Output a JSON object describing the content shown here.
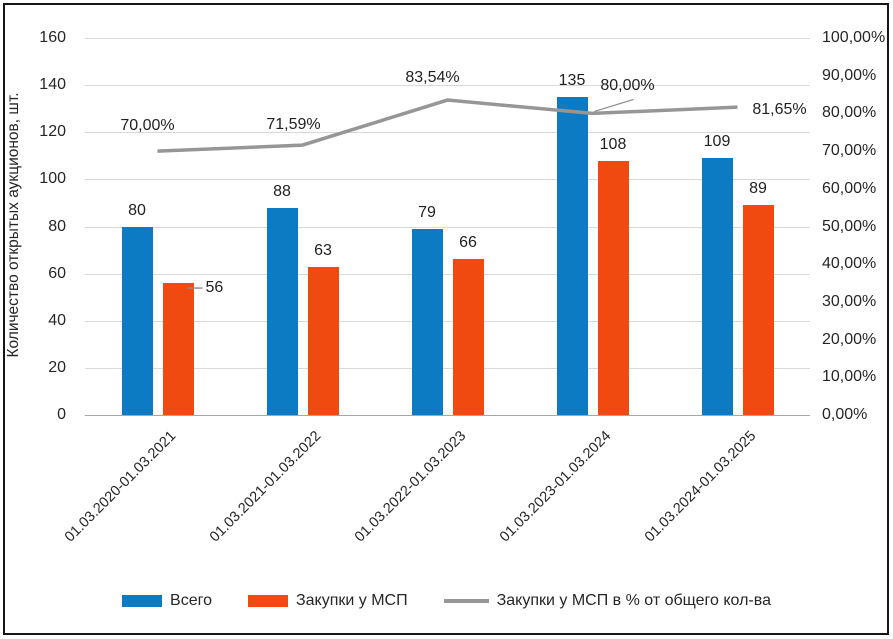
{
  "chart_data": {
    "type": "bar+line",
    "title": "",
    "categories": [
      "01.03.2020-01.03.2021",
      "01.03.2021-01.03.2022",
      "01.03.2022-01.03.2023",
      "01.03.2023-01.03.2024",
      "01.03.2024-01.03.2025"
    ],
    "series": [
      {
        "name": "Всего",
        "type": "bar",
        "color": "#0d7ac4",
        "axis": "left",
        "values": [
          80,
          88,
          79,
          135,
          109
        ]
      },
      {
        "name": "Закупки у МСП",
        "type": "bar",
        "color": "#f04a11",
        "axis": "left",
        "values": [
          56,
          63,
          66,
          108,
          89
        ],
        "label_overrides": [
          {
            "index": 0,
            "placement": "right",
            "leader": true
          }
        ]
      },
      {
        "name": "Закупки у МСП в % от общего кол-ва",
        "type": "line",
        "color": "#969696",
        "axis": "right",
        "values": [
          70.0,
          71.59,
          83.54,
          80.0,
          81.65
        ],
        "value_labels": [
          "70,00%",
          "71,59%",
          "83,54%",
          "80,00%",
          "81,65%"
        ],
        "label_offsets": [
          {
            "dx": -10,
            "dy": -25
          },
          {
            "dx": -9,
            "dy": -20
          },
          {
            "dx": -15,
            "dy": -22
          },
          {
            "dx": 35,
            "dy": -27,
            "leader": true
          },
          {
            "dx": 42,
            "dy": 3
          }
        ]
      }
    ],
    "left_axis": {
      "title": "Количество открытых аукционов, шт.",
      "min": 0,
      "max": 160,
      "step": 20,
      "ticks": [
        "0",
        "20",
        "40",
        "60",
        "80",
        "100",
        "120",
        "140",
        "160"
      ]
    },
    "right_axis": {
      "min": 0,
      "max": 100,
      "step": 10,
      "ticks": [
        "0,00%",
        "10,00%",
        "20,00%",
        "30,00%",
        "40,00%",
        "50,00%",
        "60,00%",
        "70,00%",
        "80,00%",
        "90,00%",
        "100,00%"
      ]
    },
    "grid": true,
    "legend_position": "bottom",
    "colors": {
      "gridline": "#d9d9d9",
      "axis_line": "#a6a6a6",
      "text": "#262626",
      "leader": "#8c8c8c",
      "frame_border": "#161616"
    }
  }
}
